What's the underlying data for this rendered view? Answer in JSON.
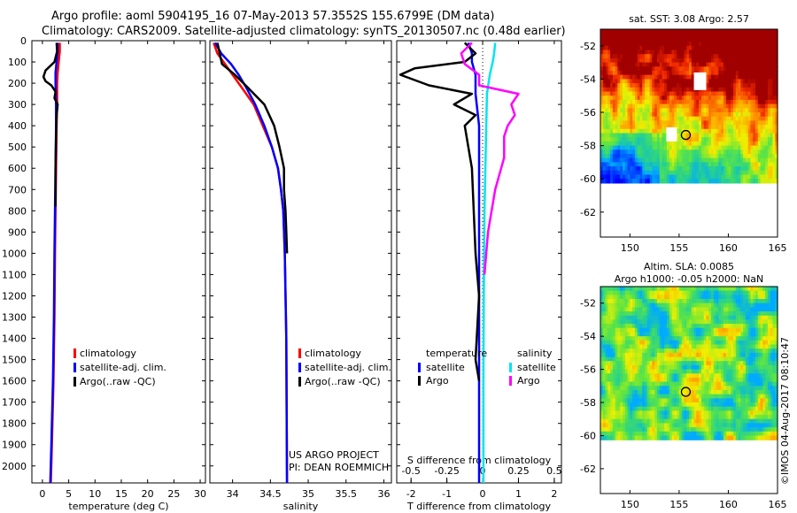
{
  "titles": {
    "line1": "Argo profile: aoml 5904195_16 07-May-2013 57.3552S 155.6799E (DM data)",
    "line2": "Climatology: CARS2009. Satellite-adjusted climatology: synTS_20130507.nc (0.48d earlier)"
  },
  "colors": {
    "climatology": "#ff0000",
    "satellite": "#0000ff",
    "argo": "#000000",
    "sal_satellite": "#00e5ee",
    "sal_argo": "#ff00ff"
  },
  "chart_data": [
    {
      "type": "line",
      "name": "temperature-panel",
      "xlabel": "temperature (deg C)",
      "xlim": [
        -2,
        31
      ],
      "xticks": [
        "0",
        "5",
        "10",
        "15",
        "20",
        "25",
        "30"
      ],
      "ylim": [
        2080,
        0
      ],
      "yticks": [
        "0",
        "100",
        "200",
        "300",
        "400",
        "500",
        "600",
        "700",
        "800",
        "900",
        "1000",
        "1100",
        "1200",
        "1300",
        "1400",
        "1500",
        "1600",
        "1700",
        "1800",
        "1900",
        "2000"
      ],
      "legend": [
        "climatology",
        "satellite-adj. clim.",
        "Argo(..raw -QC)"
      ],
      "series": [
        {
          "name": "climatology",
          "color": "climatology",
          "points": [
            [
              3.3,
              10
            ],
            [
              3.3,
              50
            ],
            [
              3.1,
              100
            ],
            [
              2.9,
              150
            ],
            [
              2.8,
              200
            ],
            [
              2.8,
              300
            ],
            [
              2.7,
              400
            ],
            [
              2.6,
              600
            ],
            [
              2.5,
              800
            ],
            [
              2.4,
              1000
            ],
            [
              2.3,
              1300
            ],
            [
              2.1,
              1600
            ],
            [
              1.8,
              1900
            ],
            [
              1.6,
              2080
            ]
          ]
        },
        {
          "name": "satellite-adj. clim.",
          "color": "satellite",
          "points": [
            [
              2.9,
              10
            ],
            [
              2.9,
              50
            ],
            [
              2.7,
              100
            ],
            [
              2.5,
              150
            ],
            [
              2.5,
              200
            ],
            [
              2.6,
              300
            ],
            [
              2.6,
              400
            ],
            [
              2.5,
              600
            ],
            [
              2.4,
              800
            ],
            [
              2.3,
              1000
            ],
            [
              2.2,
              1300
            ],
            [
              2.0,
              1600
            ],
            [
              1.7,
              1900
            ],
            [
              1.5,
              2080
            ]
          ]
        },
        {
          "name": "Argo(..raw -QC)",
          "color": "argo",
          "points": [
            [
              2.7,
              10
            ],
            [
              2.8,
              50
            ],
            [
              2.3,
              100
            ],
            [
              0.6,
              140
            ],
            [
              0.2,
              170
            ],
            [
              0.6,
              190
            ],
            [
              1.7,
              210
            ],
            [
              2.5,
              240
            ],
            [
              2.3,
              270
            ],
            [
              2.9,
              300
            ],
            [
              2.7,
              350
            ],
            [
              2.6,
              450
            ],
            [
              2.5,
              600
            ],
            [
              2.5,
              780
            ]
          ]
        }
      ]
    },
    {
      "type": "line",
      "name": "salinity-panel",
      "xlabel": "salinity",
      "xlim": [
        33.7,
        36.1
      ],
      "xticks": [
        "34",
        "34.5",
        "35",
        "35.5",
        "36"
      ],
      "ylim": [
        2080,
        0
      ],
      "legend": [
        "climatology",
        "satellite-adj. clim.",
        "Argo(..raw -QC)"
      ],
      "annotations": [
        "US ARGO PROJECT",
        "PI: DEAN ROEMMICH"
      ],
      "series": [
        {
          "name": "climatology",
          "color": "climatology",
          "points": [
            [
              33.75,
              10
            ],
            [
              33.8,
              60
            ],
            [
              33.9,
              110
            ],
            [
              34.0,
              160
            ],
            [
              34.12,
              220
            ],
            [
              34.28,
              300
            ],
            [
              34.4,
              400
            ],
            [
              34.52,
              500
            ],
            [
              34.6,
              600
            ],
            [
              34.64,
              700
            ],
            [
              34.67,
              800
            ],
            [
              34.69,
              1000
            ],
            [
              34.71,
              1400
            ],
            [
              34.72,
              2080
            ]
          ]
        },
        {
          "name": "satellite-adj. clim.",
          "color": "satellite",
          "points": [
            [
              33.77,
              10
            ],
            [
              33.85,
              60
            ],
            [
              33.98,
              110
            ],
            [
              34.08,
              160
            ],
            [
              34.18,
              220
            ],
            [
              34.3,
              300
            ],
            [
              34.42,
              400
            ],
            [
              34.52,
              500
            ],
            [
              34.6,
              600
            ],
            [
              34.64,
              700
            ],
            [
              34.67,
              800
            ],
            [
              34.69,
              1000
            ],
            [
              34.71,
              1400
            ],
            [
              34.72,
              2080
            ]
          ]
        },
        {
          "name": "Argo(..raw -QC)",
          "color": "argo",
          "points": [
            [
              33.8,
              10
            ],
            [
              33.83,
              60
            ],
            [
              33.86,
              110
            ],
            [
              34.03,
              160
            ],
            [
              34.2,
              220
            ],
            [
              34.42,
              300
            ],
            [
              34.55,
              400
            ],
            [
              34.62,
              500
            ],
            [
              34.68,
              600
            ],
            [
              34.68,
              700
            ],
            [
              34.7,
              800
            ],
            [
              34.71,
              900
            ],
            [
              34.72,
              1000
            ]
          ]
        }
      ]
    },
    {
      "type": "line",
      "name": "difference-panel",
      "xlabel": "T difference from climatology",
      "x2label": "S difference from climatology",
      "xlim": [
        -2.4,
        2.2
      ],
      "xticks": [
        "-2",
        "-1",
        "0",
        "1",
        "2"
      ],
      "x2ticks": [
        "-0.5",
        "-0.25",
        "0",
        "0.25",
        "0.5"
      ],
      "ylim": [
        2080,
        0
      ],
      "legend_titles": [
        "temperature",
        "salinity"
      ],
      "legend": [
        "satellite",
        "Argo",
        "satellite",
        "Argo"
      ],
      "series": [
        {
          "name": "temperature satellite",
          "color": "satellite",
          "points": [
            [
              -0.4,
              10
            ],
            [
              -0.3,
              60
            ],
            [
              -0.3,
              100
            ],
            [
              -0.2,
              160
            ],
            [
              -0.2,
              250
            ],
            [
              -0.1,
              400
            ],
            [
              -0.1,
              600
            ],
            [
              -0.1,
              900
            ],
            [
              -0.1,
              1200
            ],
            [
              -0.1,
              1500
            ],
            [
              -0.1,
              2080
            ]
          ]
        },
        {
          "name": "temperature Argo",
          "color": "argo",
          "points": [
            [
              -0.5,
              10
            ],
            [
              -0.2,
              60
            ],
            [
              -0.5,
              100
            ],
            [
              -1.9,
              130
            ],
            [
              -2.3,
              160
            ],
            [
              -1.5,
              210
            ],
            [
              -0.3,
              250
            ],
            [
              -0.8,
              300
            ],
            [
              -0.2,
              350
            ],
            [
              -0.5,
              400
            ],
            [
              -0.3,
              600
            ],
            [
              -0.2,
              1000
            ],
            [
              -0.1,
              1200
            ],
            [
              -0.2,
              1500
            ],
            [
              -0.1,
              1600
            ]
          ]
        },
        {
          "name": "salinity satellite",
          "color": "sal_satellite",
          "points": [
            [
              0.35,
              10
            ],
            [
              0.32,
              60
            ],
            [
              0.28,
              100
            ],
            [
              0.2,
              160
            ],
            [
              0.12,
              250
            ],
            [
              0.1,
              400
            ],
            [
              0.05,
              800
            ],
            [
              0.03,
              1200
            ],
            [
              0.02,
              1600
            ],
            [
              0.02,
              2080
            ]
          ]
        },
        {
          "name": "salinity Argo",
          "color": "sal_argo",
          "points": [
            [
              -0.3,
              10
            ],
            [
              -0.6,
              60
            ],
            [
              -0.5,
              110
            ],
            [
              -0.1,
              160
            ],
            [
              -0.1,
              210
            ],
            [
              1.0,
              250
            ],
            [
              0.8,
              300
            ],
            [
              0.9,
              350
            ],
            [
              0.7,
              400
            ],
            [
              0.6,
              450
            ],
            [
              0.6,
              550
            ],
            [
              0.35,
              700
            ],
            [
              0.15,
              900
            ],
            [
              0.05,
              1100
            ]
          ]
        }
      ]
    },
    {
      "type": "heatmap",
      "name": "sst-map",
      "title": "sat. SST: 3.08 Argo: 2.57",
      "xlim": [
        147,
        165
      ],
      "ylim": [
        -63.5,
        -51
      ],
      "data_ylim": [
        -60,
        -51
      ],
      "xticks": [
        "150",
        "155",
        "160",
        "165"
      ],
      "yticks": [
        "-52",
        "-54",
        "-56",
        "-58",
        "-60",
        "-62"
      ],
      "marker": {
        "lon": 155.68,
        "lat": -57.36
      }
    },
    {
      "type": "heatmap",
      "name": "sla-map",
      "title": "Altim. SLA: 0.0085",
      "subtitle": "Argo h1000: -0.05 h2000: NaN",
      "xlim": [
        147,
        165
      ],
      "ylim": [
        -63.5,
        -51
      ],
      "data_ylim": [
        -60,
        -51
      ],
      "xticks": [
        "150",
        "155",
        "160",
        "165"
      ],
      "yticks": [
        "-52",
        "-54",
        "-56",
        "-58",
        "-60",
        "-62"
      ],
      "marker": {
        "lon": 155.68,
        "lat": -57.36
      },
      "side_note": "©IMOS 04-Aug-2017 08:10:47"
    }
  ]
}
